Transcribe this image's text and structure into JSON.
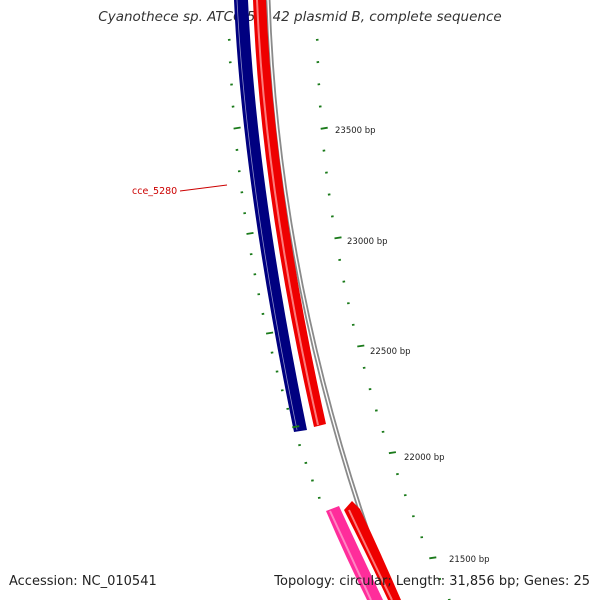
{
  "title": "Cyanothece sp. ATCC 51142 plasmid B, complete sequence",
  "footer": {
    "accession": "Accession: NC_010541",
    "summary": "Topology: circular; Length: 31,856 bp; Genes: 25"
  },
  "gene_label": "cce_5280",
  "scale_labels": [
    "23500 bp",
    "23000 bp",
    "22500 bp",
    "22000 bp",
    "21500 bp"
  ],
  "colors": {
    "backbone": "#8a8a8a",
    "forward_gene": "#ee0000",
    "reverse_gene": "#000080",
    "other_gene": "#ff2d9b",
    "ticks": "#1a7a1a",
    "label": "#cc0000"
  }
}
